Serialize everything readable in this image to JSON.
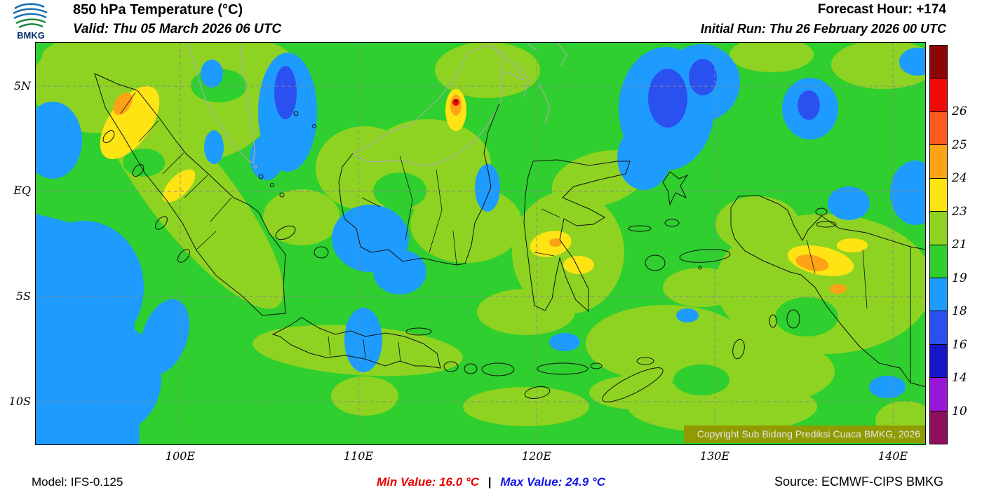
{
  "header": {
    "logo_text": "BMKG",
    "title": "850 hPa Temperature (°C)",
    "valid": "Valid: Thu 05 March 2026 06 UTC",
    "forecast_hour": "Forecast Hour: +174",
    "initial_run": "Initial Run: Thu 26 February 2026 00 UTC"
  },
  "map": {
    "y_axis_labels": [
      "5N",
      "EQ",
      "5S",
      "10S"
    ],
    "x_axis_labels": [
      "100E",
      "110E",
      "120E",
      "130E",
      "140E"
    ],
    "copyright": "Copyright Sub Bidang Prediksi Cuaca BMKG, 2026"
  },
  "colorbar": {
    "labels": [
      "26",
      "25",
      "24",
      "23",
      "21",
      "19",
      "18",
      "16",
      "14",
      "10"
    ],
    "segment_colors": [
      "#8c0606",
      "#f00a0a",
      "#ff5a1e",
      "#ffa316",
      "#ffe414",
      "#8ed321",
      "#2ecf2e",
      "#1e9bff",
      "#2b50f0",
      "#1616c8",
      "#9916d8",
      "#8f0f5f"
    ]
  },
  "palette": {
    "green": "#2ecf2e",
    "ygreen": "#8ed321",
    "yellow": "#ffe414",
    "orange": "#ffa316",
    "red": "#f00a0a",
    "darkred": "#8c0606",
    "blue": "#1e9bff",
    "blue2": "#2b50f0",
    "grid": "#8a8a8a",
    "coast": "#111111",
    "foreign": "#a9a9a9",
    "copyright_bg": "#8f9b00",
    "copyright_fg": "#e6e6e6"
  },
  "footer": {
    "model": "Model: IFS-0.125",
    "min_value": "Min Value: 16.0 °C",
    "separator": "|",
    "max_value": "Max Value: 24.9 °C",
    "source": "Source: ECMWF-CIPS BMKG",
    "min_color": "#e80000",
    "max_color": "#1414e8"
  }
}
